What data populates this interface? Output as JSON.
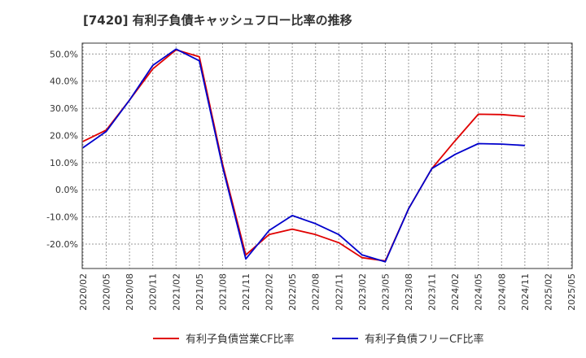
{
  "chart_data": {
    "type": "line",
    "title": "[7420]  有利子負債キャッシュフロー比率の推移",
    "xlabel": "",
    "ylabel": "",
    "x": [
      "2020/02",
      "2020/05",
      "2020/08",
      "2020/11",
      "2021/02",
      "2021/05",
      "2021/08",
      "2021/11",
      "2022/02",
      "2022/05",
      "2022/08",
      "2022/11",
      "2023/02",
      "2023/05",
      "2023/08",
      "2023/11",
      "2024/02",
      "2024/05",
      "2024/08",
      "2024/11",
      "2025/02",
      "2025/05"
    ],
    "y_ticks": [
      "50.0%",
      "40.0%",
      "30.0%",
      "20.0%",
      "10.0%",
      "0.0%",
      "-10.0%",
      "-20.0%"
    ],
    "y_tick_values": [
      50,
      40,
      30,
      20,
      10,
      0,
      -10,
      -20
    ],
    "ylim": [
      -29,
      54
    ],
    "grid": true,
    "legend_position": "bottom",
    "series": [
      {
        "name": "有利子負債営業CF比率",
        "color": "#e00000",
        "values": [
          17.8,
          22.0,
          33.0,
          44.5,
          51.5,
          49.0,
          9.5,
          -24.0,
          -16.5,
          -14.5,
          -16.5,
          -19.5,
          -25.0,
          -26.2,
          -7.0,
          7.8,
          18.0,
          27.8,
          27.7,
          27.0,
          null,
          null
        ]
      },
      {
        "name": "有利子負債フリーCF比率",
        "color": "#0000cc",
        "values": [
          15.5,
          21.5,
          33.0,
          45.8,
          51.8,
          47.5,
          8.5,
          -25.5,
          -15.0,
          -9.5,
          -12.5,
          -16.5,
          -24.0,
          -26.5,
          -7.0,
          7.8,
          13.0,
          17.0,
          16.8,
          16.3,
          null,
          null
        ]
      }
    ]
  }
}
